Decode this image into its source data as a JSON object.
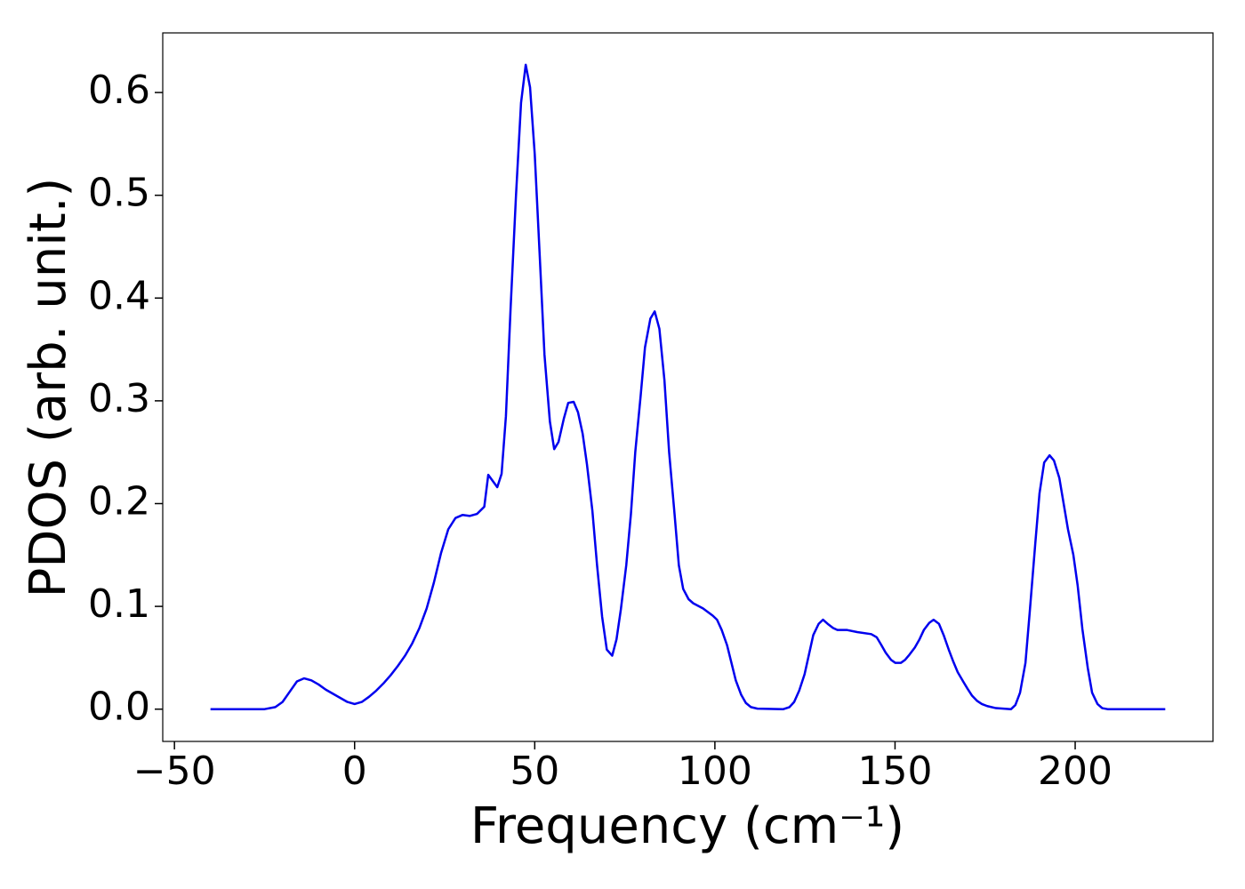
{
  "chart_data": {
    "type": "line",
    "xlabel": "Frequency (cm⁻¹)",
    "ylabel": "PDOS (arb. unit.)",
    "x": [
      -40,
      -25,
      -22,
      -20,
      -18,
      -16,
      -14,
      -12,
      -10,
      -8,
      -6,
      -4,
      -2,
      0,
      2,
      4,
      6,
      8,
      10,
      12,
      14,
      16,
      18,
      20,
      22,
      24,
      26,
      28,
      30,
      32,
      34,
      36,
      37.1,
      39.6,
      40.8,
      42,
      43.3,
      44.8,
      46.2,
      47.5,
      48.7,
      50,
      51.4,
      52.7,
      54.2,
      55.4,
      56.6,
      58.1,
      59.3,
      60.8,
      62,
      63.3,
      64.5,
      66,
      67.3,
      68.7,
      70,
      71.5,
      72.7,
      73.9,
      75.4,
      76.7,
      77.9,
      79.4,
      80.6,
      82.1,
      83.3,
      84.6,
      86,
      87.3,
      88.8,
      90,
      91.2,
      92.7,
      94,
      96.7,
      99.4,
      100.6,
      101.9,
      103.4,
      104.6,
      105.8,
      107.3,
      108.6,
      110,
      111.8,
      119,
      120.7,
      122,
      123.4,
      124.9,
      126.1,
      127.3,
      128.8,
      130,
      131.3,
      132.8,
      134,
      136.7,
      139.5,
      143.4,
      144.9,
      146.1,
      147.4,
      148.9,
      150.1,
      151.6,
      152.8,
      154,
      155.5,
      156.8,
      158,
      159.5,
      160.7,
      162.2,
      163.5,
      164.9,
      166.2,
      167.4,
      168.9,
      170.1,
      171.4,
      172.8,
      174.1,
      175.6,
      178,
      182.2,
      183.4,
      184.7,
      186.2,
      187.4,
      188.9,
      190.1,
      191.4,
      192.9,
      194.1,
      195.6,
      196.8,
      198,
      199.5,
      200.7,
      202,
      203.5,
      204.7,
      206.2,
      207.5,
      209,
      225
    ],
    "series": [
      {
        "name": "PDOS",
        "color": "#0000ee",
        "values": [
          0,
          0,
          0.002,
          0.007,
          0.017,
          0.027,
          0.03,
          0.028,
          0.024,
          0.019,
          0.015,
          0.011,
          0.007,
          0.005,
          0.007,
          0.012,
          0.018,
          0.025,
          0.033,
          0.042,
          0.052,
          0.064,
          0.079,
          0.098,
          0.123,
          0.152,
          0.175,
          0.186,
          0.189,
          0.188,
          0.19,
          0.197,
          0.228,
          0.216,
          0.229,
          0.285,
          0.39,
          0.5,
          0.59,
          0.627,
          0.605,
          0.54,
          0.44,
          0.345,
          0.28,
          0.253,
          0.26,
          0.283,
          0.298,
          0.299,
          0.289,
          0.268,
          0.238,
          0.193,
          0.14,
          0.09,
          0.058,
          0.052,
          0.068,
          0.097,
          0.14,
          0.19,
          0.25,
          0.305,
          0.352,
          0.38,
          0.387,
          0.37,
          0.32,
          0.25,
          0.19,
          0.14,
          0.117,
          0.107,
          0.103,
          0.098,
          0.091,
          0.087,
          0.077,
          0.062,
          0.045,
          0.028,
          0.014,
          0.006,
          0.002,
          0.0005,
          0,
          0.002,
          0.007,
          0.018,
          0.034,
          0.053,
          0.072,
          0.083,
          0.087,
          0.083,
          0.079,
          0.077,
          0.077,
          0.075,
          0.073,
          0.07,
          0.063,
          0.055,
          0.048,
          0.045,
          0.045,
          0.048,
          0.053,
          0.06,
          0.068,
          0.077,
          0.084,
          0.087,
          0.083,
          0.072,
          0.058,
          0.046,
          0.036,
          0.027,
          0.02,
          0.013,
          0.008,
          0.005,
          0.003,
          0.001,
          0,
          0.004,
          0.016,
          0.045,
          0.095,
          0.16,
          0.21,
          0.24,
          0.247,
          0.242,
          0.225,
          0.2,
          0.175,
          0.15,
          0.12,
          0.078,
          0.04,
          0.016,
          0.005,
          0.001,
          0,
          0
        ]
      }
    ],
    "xlim": [
      -53.25,
      238.25
    ],
    "ylim": [
      -0.0314,
      0.658
    ],
    "xticks": [
      {
        "value": -50,
        "label": "−50"
      },
      0,
      50,
      100,
      150,
      200
    ],
    "yticks": [
      {
        "value": 0,
        "label": "0.0"
      },
      0.1,
      0.2,
      0.3,
      0.4,
      0.5,
      0.6
    ],
    "grid": false
  }
}
